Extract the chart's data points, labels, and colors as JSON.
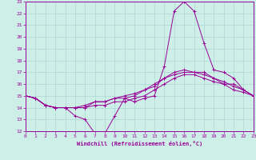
{
  "xlabel": "Windchill (Refroidissement éolien,°C)",
  "xlim": [
    0,
    23
  ],
  "ylim": [
    12,
    23
  ],
  "xticks": [
    0,
    1,
    2,
    3,
    4,
    5,
    6,
    7,
    8,
    9,
    10,
    11,
    12,
    13,
    14,
    15,
    16,
    17,
    18,
    19,
    20,
    21,
    22,
    23
  ],
  "yticks": [
    12,
    13,
    14,
    15,
    16,
    17,
    18,
    19,
    20,
    21,
    22,
    23
  ],
  "bg_color": "#ceeee8",
  "line_color": "#990099",
  "grid_color": "#aad8d0",
  "series": [
    [
      15.0,
      14.8,
      14.2,
      14.0,
      14.0,
      13.3,
      13.0,
      11.8,
      11.8,
      13.3,
      14.8,
      14.5,
      14.8,
      15.0,
      17.5,
      22.2,
      23.0,
      22.2,
      19.5,
      17.2,
      17.0,
      16.5,
      15.5,
      15.0
    ],
    [
      15.0,
      14.8,
      14.2,
      14.0,
      14.0,
      14.0,
      14.0,
      14.5,
      14.5,
      14.8,
      14.8,
      15.0,
      15.5,
      16.0,
      16.5,
      17.0,
      17.2,
      17.0,
      17.0,
      16.5,
      16.2,
      15.8,
      15.5,
      15.0
    ],
    [
      15.0,
      14.8,
      14.2,
      14.0,
      14.0,
      14.0,
      14.0,
      14.2,
      14.2,
      14.5,
      14.5,
      14.8,
      15.0,
      15.5,
      16.0,
      16.5,
      16.8,
      16.8,
      16.5,
      16.2,
      16.0,
      15.5,
      15.3,
      15.0
    ],
    [
      15.0,
      14.8,
      14.2,
      14.0,
      14.0,
      14.0,
      14.2,
      14.5,
      14.5,
      14.8,
      15.0,
      15.2,
      15.5,
      15.8,
      16.5,
      16.8,
      17.0,
      17.0,
      16.8,
      16.5,
      16.0,
      16.0,
      15.5,
      15.0
    ]
  ]
}
